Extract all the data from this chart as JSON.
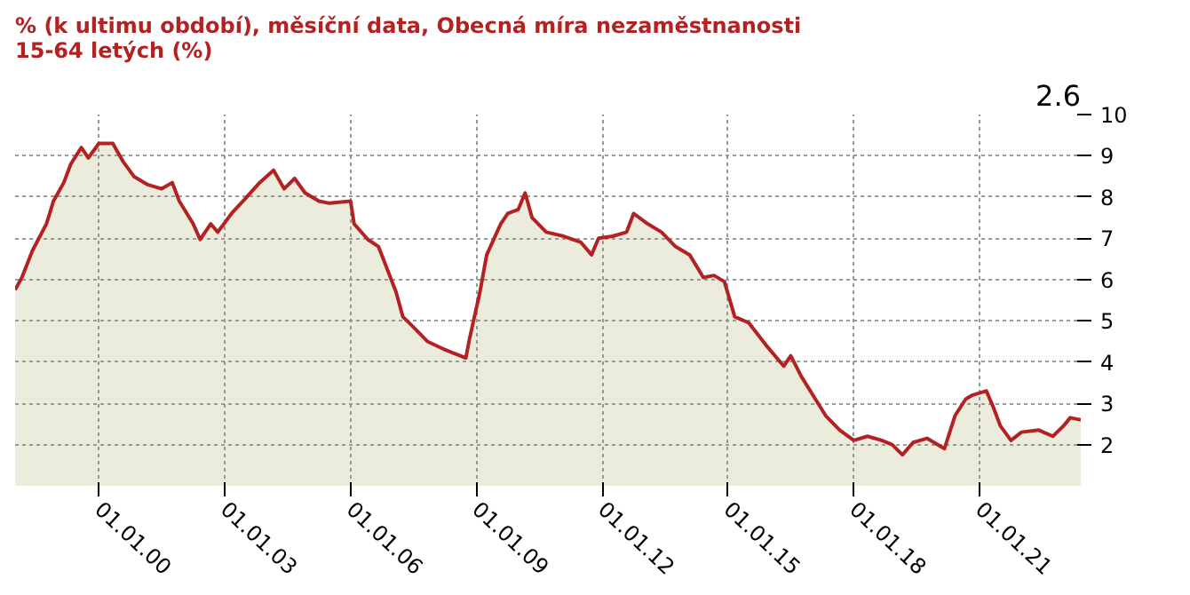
{
  "chart_data": {
    "type": "area",
    "title": "% (k ultimu období), měsíční data, Obecná míra nezaměstnanosti\n15-64 letých (%)",
    "annotations": [
      "2.6"
    ],
    "x": [
      "1998-01",
      "1998-03",
      "1998-06",
      "1998-10",
      "1998-12",
      "1999-03",
      "1999-05",
      "1999-08",
      "1999-10",
      "2000-01",
      "2000-05",
      "2000-08",
      "2000-11",
      "2001-03",
      "2001-07",
      "2001-10",
      "2001-12",
      "2002-04",
      "2002-06",
      "2002-09",
      "2002-11",
      "2003-03",
      "2003-07",
      "2003-11",
      "2004-03",
      "2004-06",
      "2004-09",
      "2004-12",
      "2005-04",
      "2005-07",
      "2006-01",
      "2006-02",
      "2006-06",
      "2006-09",
      "2007-02",
      "2007-04",
      "2007-07",
      "2007-11",
      "2008-04",
      "2008-07",
      "2008-10",
      "2008-11",
      "2009-02",
      "2009-04",
      "2009-08",
      "2009-10",
      "2010-01",
      "2010-03",
      "2010-05",
      "2010-09",
      "2011-02",
      "2011-07",
      "2011-10",
      "2011-12",
      "2012-04",
      "2012-08",
      "2012-10",
      "2013-02",
      "2013-06",
      "2013-10",
      "2014-02",
      "2014-06",
      "2014-09",
      "2014-12",
      "2015-03",
      "2015-07",
      "2015-12",
      "2016-05",
      "2016-07",
      "2016-10",
      "2017-02",
      "2017-05",
      "2017-09",
      "2018-01",
      "2018-05",
      "2018-09",
      "2018-12",
      "2019-03",
      "2019-06",
      "2019-10",
      "2020-03",
      "2020-06",
      "2020-09",
      "2020-11",
      "2021-03",
      "2021-05",
      "2021-07",
      "2021-10",
      "2022-01",
      "2022-06",
      "2022-10",
      "2023-01",
      "2023-03",
      "2023-06"
    ],
    "series": [
      {
        "color": "#b22222",
        "values": [
          5.75,
          6.05,
          6.7,
          7.35,
          7.9,
          8.35,
          8.8,
          9.2,
          8.95,
          9.3,
          9.3,
          8.85,
          8.5,
          8.3,
          8.2,
          8.35,
          7.9,
          7.35,
          6.97,
          7.35,
          7.15,
          7.6,
          7.97,
          8.35,
          8.65,
          8.2,
          8.45,
          8.1,
          7.9,
          7.85,
          7.9,
          7.35,
          6.97,
          6.8,
          5.7,
          5.1,
          4.85,
          4.5,
          4.3,
          4.2,
          4.1,
          4.55,
          5.7,
          6.6,
          7.35,
          7.6,
          7.7,
          8.1,
          7.5,
          7.15,
          7.05,
          6.9,
          6.6,
          7.0,
          7.05,
          7.15,
          7.6,
          7.35,
          7.15,
          6.8,
          6.6,
          6.05,
          6.1,
          5.95,
          5.1,
          4.95,
          4.4,
          3.9,
          4.15,
          3.65,
          3.1,
          2.7,
          2.35,
          2.1,
          2.2,
          2.1,
          2.0,
          1.75,
          2.05,
          2.15,
          1.9,
          2.7,
          3.1,
          3.2,
          3.3,
          2.9,
          2.45,
          2.1,
          2.3,
          2.35,
          2.2,
          2.45,
          2.65,
          2.6
        ]
      }
    ],
    "xlim": [
      "1998-01",
      "2023-06"
    ],
    "xticks": [
      {
        "value": "2000-01-01",
        "label": "01.01.00"
      },
      {
        "value": "2003-01-01",
        "label": "01.01.03"
      },
      {
        "value": "2006-01-01",
        "label": "01.01.06"
      },
      {
        "value": "2009-01-01",
        "label": "01.01.09"
      },
      {
        "value": "2012-01-01",
        "label": "01.01.12"
      },
      {
        "value": "2015-01-01",
        "label": "01.01.15"
      },
      {
        "value": "2018-01-01",
        "label": "01.01.18"
      },
      {
        "value": "2021-01-01",
        "label": "01.01.21"
      }
    ],
    "ylim": [
      1,
      10
    ],
    "yticks": [
      2,
      3,
      4,
      5,
      6,
      7,
      8,
      9,
      10
    ],
    "grid": true
  }
}
